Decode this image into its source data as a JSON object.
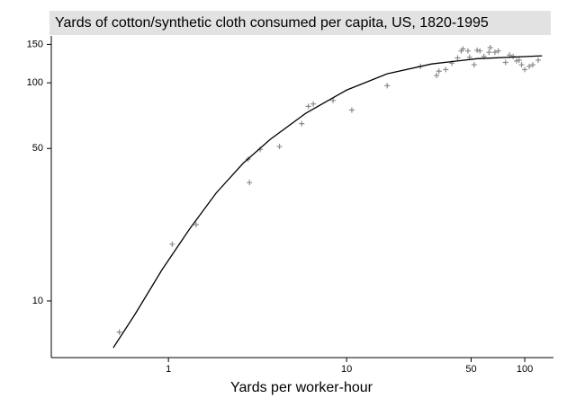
{
  "chart_data": {
    "type": "scatter",
    "title": "Yards of cotton/synthetic cloth consumed per capita, US, 1820-1995",
    "xlabel": "Yards per worker-hour",
    "x": [
      0.53,
      1.05,
      1.43,
      2.8,
      2.85,
      3.27,
      4.2,
      5.6,
      6.1,
      6.5,
      8.4,
      10.7,
      16.9,
      26,
      32,
      33,
      36,
      39,
      42,
      44,
      45,
      48,
      49,
      52,
      54,
      56,
      59,
      63,
      64,
      68,
      71,
      78,
      82,
      86,
      90,
      93,
      96,
      100,
      106,
      111,
      119
    ],
    "y": [
      7.2,
      18.2,
      22.4,
      44.7,
      34.9,
      49.5,
      51,
      65,
      78,
      80,
      83,
      75,
      97,
      119,
      108,
      113,
      115,
      123,
      130,
      140,
      143,
      140,
      131,
      121,
      141,
      140,
      132,
      138,
      145,
      138,
      140,
      124,
      134,
      132,
      126,
      127,
      121,
      115,
      119,
      121,
      127
    ],
    "color": "#8a8a8a",
    "fit": {
      "x": [
        0.49,
        0.65,
        0.92,
        1.31,
        1.85,
        2.62,
        3.72,
        5.9,
        10,
        16.9,
        30,
        54,
        125
      ],
      "y": [
        6.1,
        8.7,
        13.9,
        21.3,
        31.2,
        42.7,
        55,
        72.5,
        92.6,
        110,
        122,
        129,
        133
      ],
      "color": "#000000"
    },
    "xscale": "log",
    "yscale": "log",
    "xlim": [
      0.22,
      145
    ],
    "ylim": [
      5.5,
      164
    ],
    "xticks": [
      1,
      10,
      50,
      100
    ],
    "yticks": [
      10,
      50,
      100,
      150
    ]
  }
}
